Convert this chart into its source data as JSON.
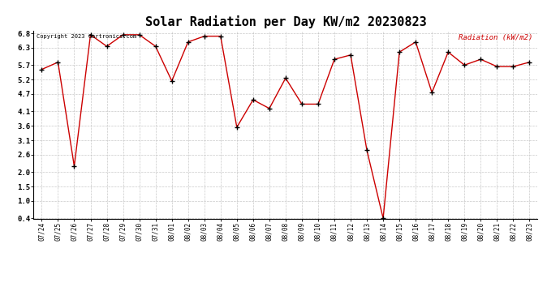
{
  "title": "Solar Radiation per Day KW/m2 20230823",
  "copyright_text": "Copyright 2023 Cartronics.com",
  "legend_label": "Radiation (kW/m2)",
  "dates": [
    "07/24",
    "07/25",
    "07/26",
    "07/27",
    "07/28",
    "07/29",
    "07/30",
    "07/31",
    "08/01",
    "08/02",
    "08/03",
    "08/04",
    "08/05",
    "08/06",
    "08/07",
    "08/08",
    "08/09",
    "08/10",
    "08/11",
    "08/12",
    "08/13",
    "08/14",
    "08/15",
    "08/16",
    "08/17",
    "08/18",
    "08/19",
    "08/20",
    "08/21",
    "08/22",
    "08/23"
  ],
  "values": [
    5.55,
    5.8,
    2.2,
    6.75,
    6.35,
    6.75,
    6.75,
    6.35,
    5.15,
    6.5,
    6.7,
    6.7,
    3.55,
    4.5,
    4.2,
    5.25,
    4.35,
    4.35,
    5.9,
    6.05,
    2.75,
    0.4,
    6.15,
    6.5,
    4.75,
    6.15,
    5.7,
    5.9,
    5.65,
    5.65,
    5.8
  ],
  "ylim_min": 0.4,
  "ylim_max": 6.8,
  "yticks": [
    0.4,
    1.0,
    1.5,
    2.0,
    2.6,
    3.1,
    3.6,
    4.1,
    4.7,
    5.2,
    5.7,
    6.3,
    6.8
  ],
  "line_color": "#cc0000",
  "marker_color": "#000000",
  "grid_color": "#bbbbbb",
  "title_fontsize": 11,
  "bg_color": "#ffffff",
  "copyright_color": "#000000",
  "legend_color": "#cc0000"
}
